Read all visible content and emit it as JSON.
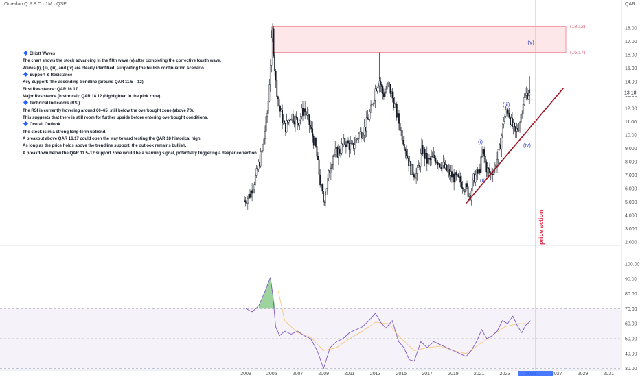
{
  "header": {
    "title": "Ooredoo Q.P.S.C · 1M · QSE",
    "currency": "QAR"
  },
  "notes": [
    {
      "heading": true,
      "text": "Elliott Waves"
    },
    {
      "heading": false,
      "text": "The chart shows the stock advancing in the fifth wave (v) after completing the corrective fourth wave."
    },
    {
      "heading": false,
      "text": "Waves (i), (ii), (iii), and (iv) are clearly identified, supporting the bullish continuation scenario."
    },
    {
      "heading": true,
      "text": "Support & Resistance"
    },
    {
      "heading": false,
      "text": "Key Support: The ascending trendline (around QAR 11.5 – 12)."
    },
    {
      "heading": false,
      "text": "First Resistance: QAR 16.17."
    },
    {
      "heading": false,
      "text": "Major Resistance (historical): QAR 18.12 (highlighted in the pink zone)."
    },
    {
      "heading": true,
      "text": "Technical Indicators (RSI)"
    },
    {
      "heading": false,
      "text": "The RSI is currently hovering around 60–65, still below the overbought zone (above 70)."
    },
    {
      "heading": false,
      "text": "This suggests that there is still room for further upside before entering overbought conditions."
    },
    {
      "heading": true,
      "text": "Overall Outlook"
    },
    {
      "heading": false,
      "text": "The stock is in a strong long-term uptrend."
    },
    {
      "heading": false,
      "text": "A breakout above QAR 16.17 could open the way toward testing the QAR 18 historical high."
    },
    {
      "heading": false,
      "text": "As long as the price holds above the trendline support, the outlook remains bullish."
    },
    {
      "heading": false,
      "text": "A breakdown below the QAR 11.5–12 support zone would be a warning signal, potentially triggering a deeper correction."
    }
  ],
  "chart_data": [
    {
      "type": "candlestick",
      "title": "Ooredoo Q.P.S.C · 1M · QSE",
      "price_axis_ticks": [
        "18.00",
        "17.00",
        "16.00",
        "15.00",
        "14.00",
        "13.00",
        "12.00",
        "11.00",
        "10.00",
        "9.000",
        "8.000",
        "7.000",
        "6.000",
        "5.000",
        "4.000",
        "3.000",
        "2.000"
      ],
      "year_axis_ticks": [
        "2003",
        "2005",
        "2007",
        "2009",
        "2011",
        "2013",
        "2015",
        "2017",
        "2019",
        "2021",
        "2023",
        "2025",
        "2027",
        "2029",
        "2031"
      ],
      "ylim": [
        1.6,
        18.9
      ],
      "last_price_label": "13.18",
      "price_path": [
        [
          2002.9,
          5.1
        ],
        [
          2003.3,
          5.5
        ],
        [
          2003.8,
          7.0
        ],
        [
          2004.3,
          9.0
        ],
        [
          2004.7,
          12.0
        ],
        [
          2005.05,
          18.0
        ],
        [
          2005.3,
          14.0
        ],
        [
          2005.6,
          12.0
        ],
        [
          2006.0,
          10.5
        ],
        [
          2006.5,
          11.5
        ],
        [
          2007.0,
          11.0
        ],
        [
          2007.5,
          12.0
        ],
        [
          2008.0,
          10.5
        ],
        [
          2008.4,
          9.0
        ],
        [
          2008.8,
          6.0
        ],
        [
          2009.0,
          5.0
        ],
        [
          2009.3,
          6.5
        ],
        [
          2009.7,
          8.5
        ],
        [
          2010.2,
          8.8
        ],
        [
          2010.7,
          9.5
        ],
        [
          2011.2,
          9.0
        ],
        [
          2011.7,
          10.0
        ],
        [
          2012.2,
          10.5
        ],
        [
          2012.7,
          12.0
        ],
        [
          2013.0,
          13.5
        ],
        [
          2013.3,
          14.2
        ],
        [
          2013.6,
          13.0
        ],
        [
          2014.0,
          13.8
        ],
        [
          2014.4,
          12.5
        ],
        [
          2014.8,
          11.0
        ],
        [
          2015.2,
          9.5
        ],
        [
          2015.7,
          7.5
        ],
        [
          2016.2,
          7.0
        ],
        [
          2016.6,
          9.0
        ],
        [
          2017.0,
          8.0
        ],
        [
          2017.6,
          8.3
        ],
        [
          2018.1,
          7.8
        ],
        [
          2018.6,
          7.2
        ],
        [
          2019.1,
          6.8
        ],
        [
          2019.6,
          6.5
        ],
        [
          2020.0,
          6.0
        ],
        [
          2020.3,
          5.5
        ],
        [
          2020.6,
          6.8
        ],
        [
          2021.0,
          7.2
        ],
        [
          2021.3,
          8.8
        ],
        [
          2021.6,
          7.4
        ],
        [
          2021.9,
          7.1
        ],
        [
          2022.3,
          7.8
        ],
        [
          2022.6,
          9.0
        ],
        [
          2022.9,
          11.2
        ],
        [
          2023.2,
          12.0
        ],
        [
          2023.5,
          10.8
        ],
        [
          2023.8,
          10.1
        ],
        [
          2024.1,
          10.8
        ],
        [
          2024.4,
          12.5
        ],
        [
          2024.7,
          13.1
        ],
        [
          2024.9,
          13.18
        ]
      ],
      "resistance_zone": {
        "low": 16.17,
        "high": 18.12,
        "low_label": "(16.17)",
        "high_label": "(18.12)"
      },
      "trendline": {
        "start": [
          2020.0,
          4.9
        ],
        "end": [
          2027.5,
          13.5
        ]
      },
      "wave_labels": [
        {
          "text": "(i)",
          "x": 2021.1,
          "y": 9.35
        },
        {
          "text": "(ii)",
          "x": 2021.3,
          "y": 6.5
        },
        {
          "text": "(iii)",
          "x": 2023.1,
          "y": 12.15
        },
        {
          "text": "(iv)",
          "x": 2024.7,
          "y": 9.1
        },
        {
          "text": "(v)",
          "x": 2025.0,
          "y": 16.8
        }
      ],
      "vertical_marker_label": "price action"
    },
    {
      "type": "line",
      "name": "RSI",
      "rsi_axis_ticks": [
        "100.00",
        "90.00",
        "80.00",
        "70.00",
        "60.00",
        "50.00",
        "40.00",
        "30.00"
      ],
      "ylim": [
        24,
        103
      ],
      "bands": {
        "upper": 70,
        "middle": 50,
        "lower": 30
      },
      "series": [
        {
          "name": "RSI",
          "points": [
            [
              2003.0,
              70
            ],
            [
              2003.5,
              68
            ],
            [
              2004.0,
              72
            ],
            [
              2004.5,
              82
            ],
            [
              2004.9,
              91
            ],
            [
              2005.1,
              78
            ],
            [
              2005.3,
              58
            ],
            [
              2005.6,
              52
            ],
            [
              2006.0,
              55
            ],
            [
              2006.5,
              53
            ],
            [
              2007.0,
              55
            ],
            [
              2007.5,
              52
            ],
            [
              2008.0,
              50
            ],
            [
              2008.5,
              42
            ],
            [
              2009.0,
              30
            ],
            [
              2009.5,
              44
            ],
            [
              2010.0,
              48
            ],
            [
              2010.5,
              50
            ],
            [
              2011.0,
              54
            ],
            [
              2011.5,
              56
            ],
            [
              2012.0,
              58
            ],
            [
              2012.5,
              62
            ],
            [
              2013.0,
              67
            ],
            [
              2013.4,
              61
            ],
            [
              2013.8,
              57
            ],
            [
              2014.3,
              62
            ],
            [
              2014.8,
              48
            ],
            [
              2015.2,
              44
            ],
            [
              2015.6,
              36
            ],
            [
              2016.0,
              35
            ],
            [
              2016.5,
              48
            ],
            [
              2017.0,
              44
            ],
            [
              2017.5,
              48
            ],
            [
              2018.0,
              46
            ],
            [
              2018.5,
              44
            ],
            [
              2019.0,
              42
            ],
            [
              2019.5,
              40
            ],
            [
              2020.0,
              38
            ],
            [
              2020.4,
              42
            ],
            [
              2020.8,
              48
            ],
            [
              2021.2,
              56
            ],
            [
              2021.6,
              50
            ],
            [
              2022.0,
              52
            ],
            [
              2022.4,
              55
            ],
            [
              2022.8,
              62
            ],
            [
              2023.2,
              60
            ],
            [
              2023.6,
              65
            ],
            [
              2024.0,
              58
            ],
            [
              2024.3,
              54
            ],
            [
              2024.6,
              59
            ],
            [
              2025.0,
              62
            ]
          ]
        },
        {
          "name": "RSI-based MA",
          "points": [
            [
              2005.5,
              82
            ],
            [
              2006.0,
              62
            ],
            [
              2007.0,
              54
            ],
            [
              2008.0,
              51
            ],
            [
              2009.0,
              42
            ],
            [
              2010.0,
              44
            ],
            [
              2011.0,
              50
            ],
            [
              2012.0,
              55
            ],
            [
              2013.0,
              61
            ],
            [
              2014.0,
              60
            ],
            [
              2015.0,
              50
            ],
            [
              2016.0,
              42
            ],
            [
              2017.0,
              44
            ],
            [
              2018.0,
              45
            ],
            [
              2019.0,
              42
            ],
            [
              2020.0,
              40
            ],
            [
              2021.0,
              46
            ],
            [
              2022.0,
              52
            ],
            [
              2023.0,
              58
            ],
            [
              2024.0,
              60
            ],
            [
              2025.0,
              60
            ]
          ]
        }
      ]
    }
  ]
}
